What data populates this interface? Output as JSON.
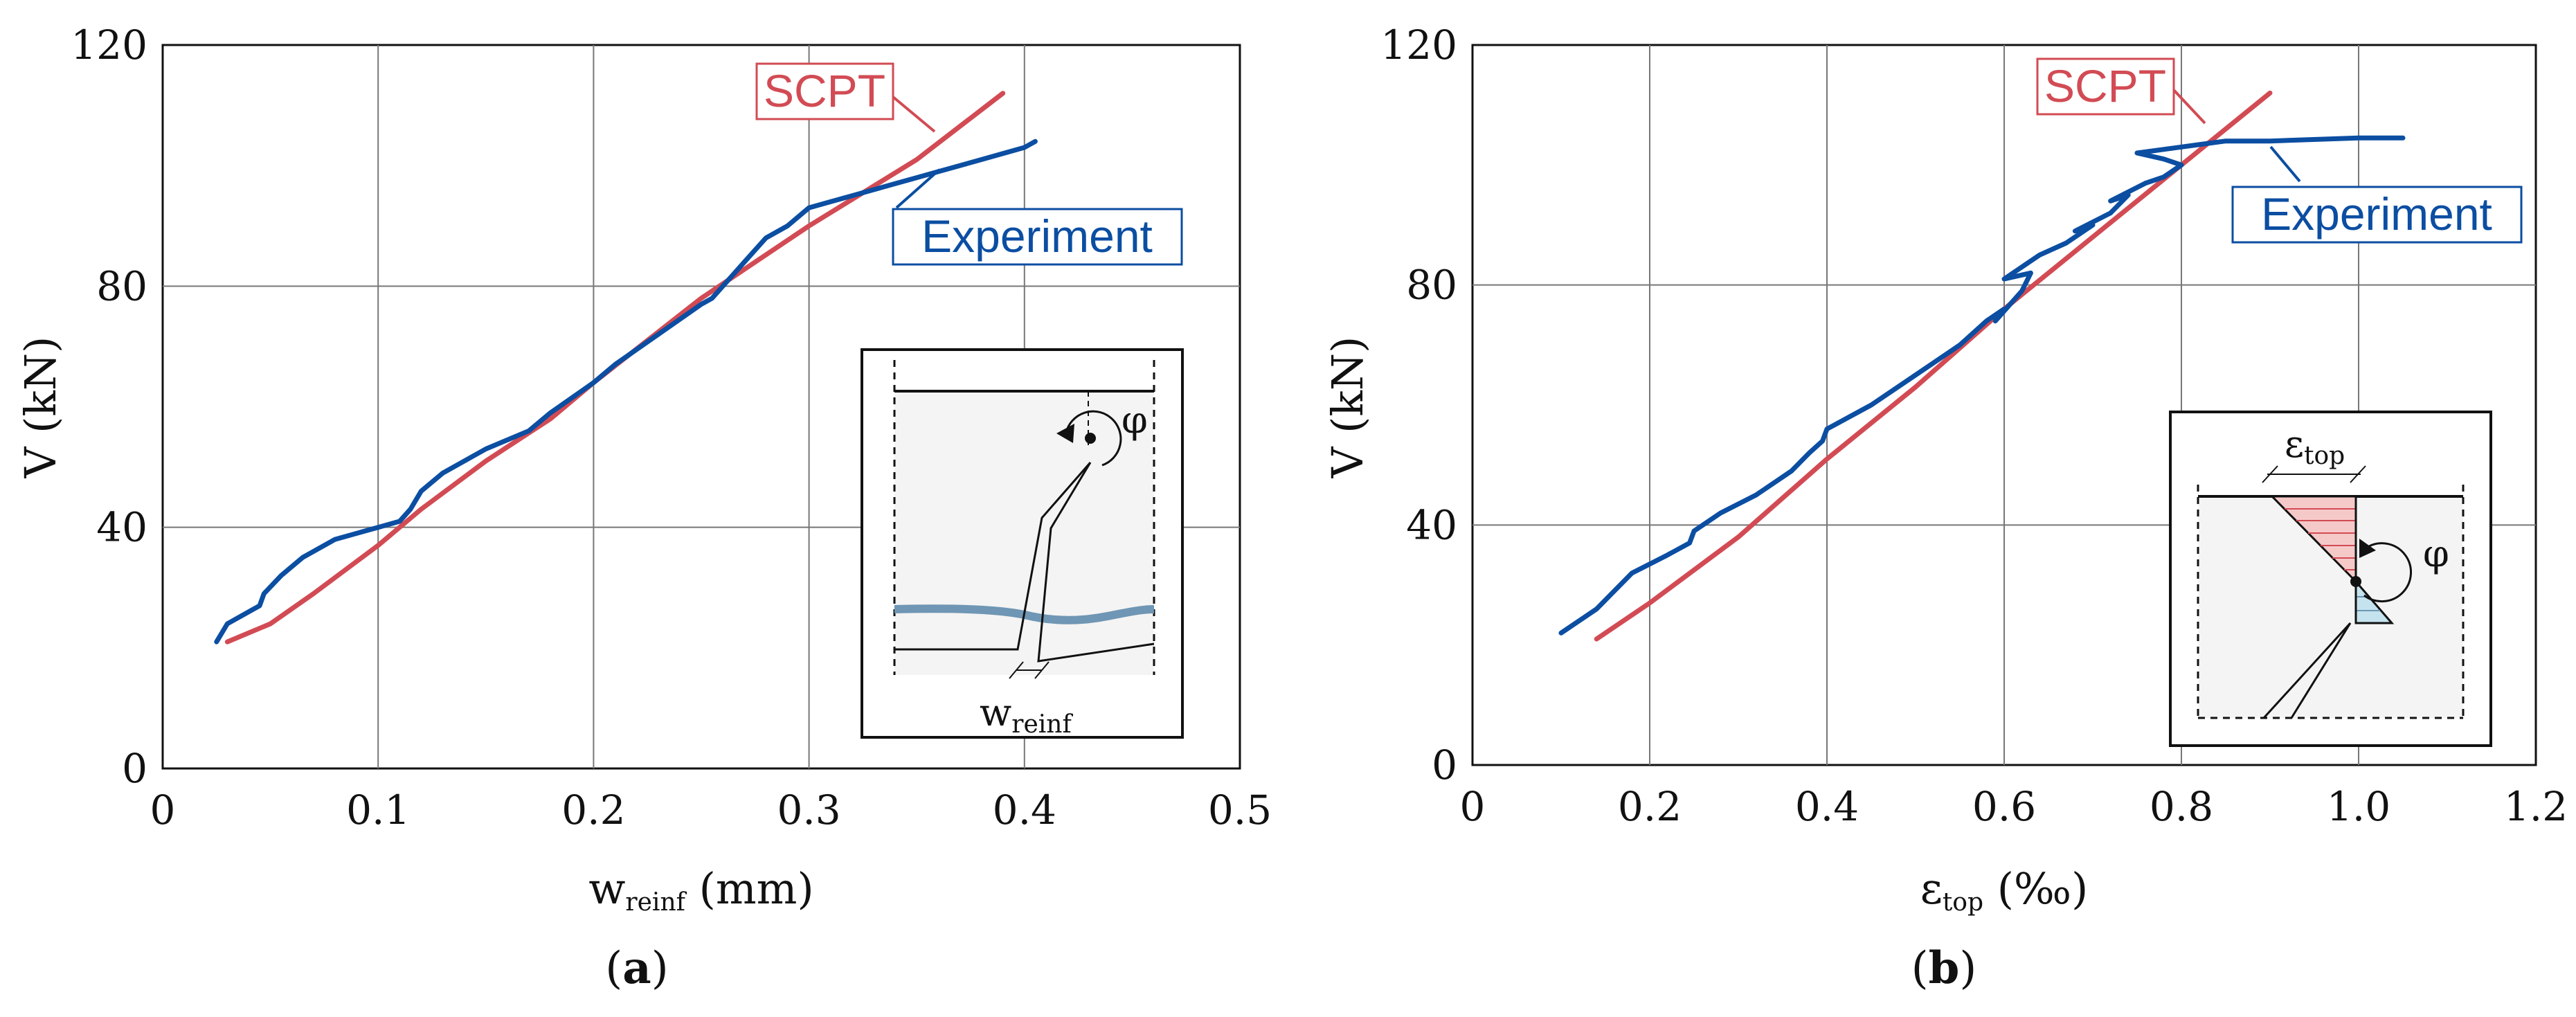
{
  "colors": {
    "scpt": "#d24b54",
    "experiment": "#0b4ea2",
    "grid": "#777777",
    "rebar": "#6f96b4",
    "compression_fill": "#f6c9c9",
    "tension_fill": "#c5e3ee"
  },
  "chart_data": [
    {
      "type": "line",
      "panel_label": "(a)",
      "panel_letter": "a",
      "xlabel_main": "w",
      "xlabel_sub": "reinf",
      "xlabel_unit": " (mm)",
      "ylabel": "V (kN)",
      "xlim": [
        0,
        0.5
      ],
      "ylim": [
        0,
        120
      ],
      "xticks": [
        0,
        0.1,
        0.2,
        0.3,
        0.4,
        0.5
      ],
      "xtick_labels": [
        "0",
        "0.1",
        "0.2",
        "0.3",
        "0.4",
        "0.5"
      ],
      "yticks": [
        0,
        40,
        80,
        120
      ],
      "ytick_labels": [
        "0",
        "40",
        "80",
        "120"
      ],
      "legend": {
        "scpt": "SCPT",
        "experiment": "Experiment"
      },
      "inset": {
        "angle_symbol": "φ",
        "label_main": "w",
        "label_sub": "reinf"
      },
      "series": [
        {
          "name": "SCPT",
          "x": [
            0.03,
            0.05,
            0.07,
            0.1,
            0.12,
            0.15,
            0.18,
            0.2,
            0.25,
            0.3,
            0.35,
            0.39
          ],
          "y": [
            21,
            24,
            29,
            37,
            43,
            51,
            58,
            64,
            78,
            90,
            101,
            112
          ]
        },
        {
          "name": "Experiment",
          "x": [
            0.025,
            0.03,
            0.04,
            0.045,
            0.047,
            0.055,
            0.065,
            0.08,
            0.1,
            0.11,
            0.115,
            0.12,
            0.13,
            0.15,
            0.17,
            0.18,
            0.2,
            0.21,
            0.23,
            0.25,
            0.255,
            0.26,
            0.265,
            0.27,
            0.275,
            0.28,
            0.29,
            0.3,
            0.31,
            0.32,
            0.33,
            0.34,
            0.35,
            0.36,
            0.37,
            0.38,
            0.39,
            0.4,
            0.405
          ],
          "y": [
            21,
            24,
            26,
            27,
            29,
            32,
            35,
            38,
            40,
            41,
            43,
            46,
            49,
            53,
            56,
            59,
            64,
            67,
            72,
            77,
            78,
            80,
            82,
            84,
            86,
            88,
            90,
            93,
            94,
            95,
            96,
            97,
            98,
            99,
            100,
            101,
            102,
            103,
            104
          ]
        }
      ]
    },
    {
      "type": "line",
      "panel_label": "(b)",
      "panel_letter": "b",
      "xlabel_main": "ε",
      "xlabel_sub": "top",
      "xlabel_unit": " (‰)",
      "ylabel": "V (kN)",
      "xlim": [
        0,
        1.2
      ],
      "ylim": [
        0,
        120
      ],
      "xticks": [
        0,
        0.2,
        0.4,
        0.6,
        0.8,
        1.0,
        1.2
      ],
      "xtick_labels": [
        "0",
        "0.2",
        "0.4",
        "0.6",
        "0.8",
        "1.0",
        "1.2"
      ],
      "yticks": [
        0,
        40,
        80,
        120
      ],
      "ytick_labels": [
        "0",
        "40",
        "80",
        "120"
      ],
      "legend": {
        "scpt": "SCPT",
        "experiment": "Experiment"
      },
      "inset": {
        "angle_symbol": "φ",
        "label_main": "ε",
        "label_sub": "top"
      },
      "series": [
        {
          "name": "SCPT",
          "x": [
            0.14,
            0.2,
            0.3,
            0.4,
            0.5,
            0.6,
            0.7,
            0.8,
            0.9
          ],
          "y": [
            21,
            27,
            38,
            51,
            63,
            76,
            88,
            100,
            112
          ]
        },
        {
          "name": "Experiment",
          "x": [
            0.1,
            0.14,
            0.18,
            0.22,
            0.245,
            0.25,
            0.28,
            0.32,
            0.36,
            0.38,
            0.395,
            0.4,
            0.45,
            0.5,
            0.55,
            0.58,
            0.6,
            0.59,
            0.62,
            0.63,
            0.6,
            0.64,
            0.67,
            0.7,
            0.68,
            0.72,
            0.74,
            0.72,
            0.76,
            0.78,
            0.8,
            0.78,
            0.75,
            0.8,
            0.85,
            0.9,
            1.0,
            1.05
          ],
          "y": [
            22,
            26,
            32,
            35,
            37,
            39,
            42,
            45,
            49,
            52,
            54,
            56,
            60,
            65,
            70,
            74,
            76,
            74,
            79,
            82,
            81,
            85,
            87,
            90,
            89,
            92,
            95,
            94,
            97,
            98,
            100,
            101,
            102,
            103,
            104,
            104,
            104.5,
            104.5
          ]
        }
      ]
    }
  ]
}
